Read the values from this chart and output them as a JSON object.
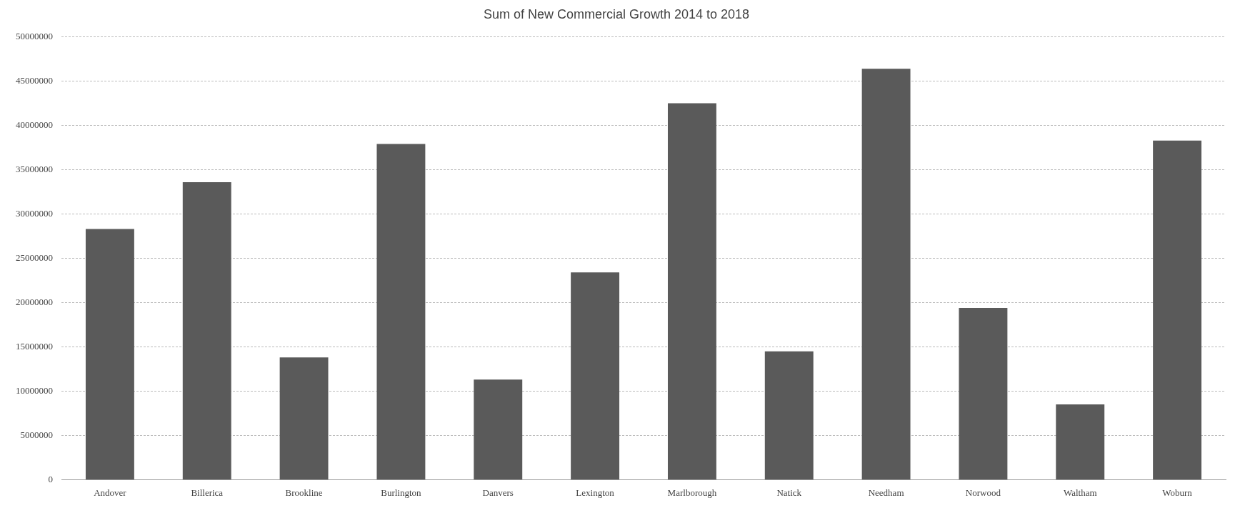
{
  "chart_data": {
    "type": "bar",
    "title": "Sum of New Commercial Growth 2014 to 2018",
    "categories": [
      "Andover",
      "Billerica",
      "Brookline",
      "Burlington",
      "Danvers",
      "Lexington",
      "Marlborough",
      "Natick",
      "Needham",
      "Norwood",
      "Waltham",
      "Woburn"
    ],
    "values": [
      28300000,
      33600000,
      13800000,
      37900000,
      11300000,
      23400000,
      42500000,
      14500000,
      46400000,
      19400000,
      8500000,
      38300000
    ],
    "color": "#5a5a5a",
    "ylim": [
      0,
      50000000
    ],
    "yticks": [
      0,
      5000000,
      10000000,
      15000000,
      20000000,
      25000000,
      30000000,
      35000000,
      40000000,
      45000000,
      50000000
    ],
    "grid": "y",
    "legend": false
  }
}
